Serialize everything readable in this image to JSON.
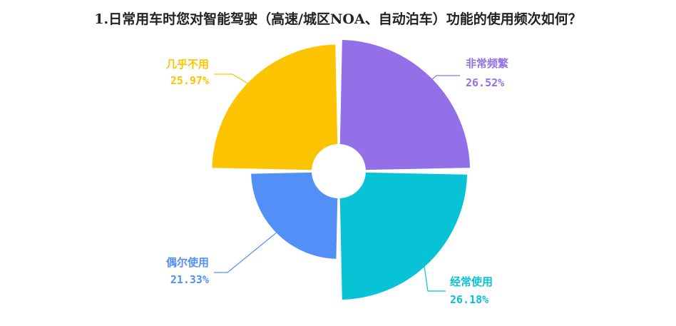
{
  "chart_data": {
    "type": "pie",
    "title": "1.日常用车时您对智能驾驶（高速/城区NOA、自动泊车）功能的使用频次如何？",
    "variant": "rose (nightingale) with donut hole",
    "slices": [
      {
        "label": "非常频繁",
        "value": 26.52,
        "display": "26.52%",
        "color": "#9370e8"
      },
      {
        "label": "经常使用",
        "value": 26.18,
        "display": "26.18%",
        "color": "#08c2d6"
      },
      {
        "label": "偶尔使用",
        "value": 21.33,
        "display": "21.33%",
        "color": "#5290f7"
      },
      {
        "label": "几乎不用",
        "value": 25.97,
        "display": "25.97%",
        "color": "#fcc400"
      }
    ],
    "legend": "none",
    "data_labels": "outside with leader lines"
  }
}
